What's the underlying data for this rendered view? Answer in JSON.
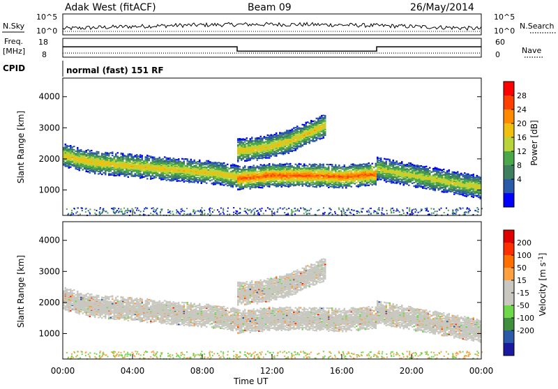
{
  "header": {
    "station": "Adak West (fitACF)",
    "beam": "Beam 09",
    "date": "26/May/2014"
  },
  "top_panels": {
    "nsky_label": "N.Sky",
    "nsky_ticks": [
      "10^5",
      "10^0"
    ],
    "nsearch_label": "N.Search",
    "nsearch_ticks": [
      "10^5",
      "10^0"
    ],
    "freq_label": "Freq.",
    "freq_unit": "[MHz]",
    "freq_ticks": [
      "18",
      "8"
    ],
    "nave_label": "Nave",
    "nave_ticks": [
      "60",
      "0"
    ],
    "cpid_label": "CPID",
    "cpid_text": "normal (fast) 151 RF"
  },
  "colors": {
    "power_scale": [
      "#0000ff",
      "#2a5aa8",
      "#3f7f5f",
      "#4aa84a",
      "#b8d43a",
      "#f0c010",
      "#ff8a00",
      "#ff4000",
      "#ff0000"
    ],
    "velocity_scale": [
      "#1a1aa0",
      "#2a5aa8",
      "#3f8f3f",
      "#6fd84a",
      "#c8c8c0",
      "#c8c8c0",
      "#ffa040",
      "#ff7000",
      "#ff3000",
      "#e00000"
    ]
  },
  "chart_data": [
    {
      "type": "line",
      "title": "N.Sky / N.Search",
      "ylabel": "N.Sky",
      "y2label": "N.Search",
      "ylim": [
        1,
        100000
      ],
      "log_scale": true,
      "series": []
    },
    {
      "type": "line",
      "ylabel": "Freq. [MHz]",
      "y2label": "Nave",
      "ylim": [
        8,
        18
      ],
      "y2lim": [
        0,
        60
      ],
      "x": [
        0,
        10,
        10,
        18,
        18,
        24
      ],
      "series": [
        {
          "name": "Freq.",
          "values": [
            13.5,
            13.5,
            11.2,
            11.2,
            13.5,
            13.5
          ]
        },
        {
          "name": "Nave",
          "values": [
            13,
            13,
            13,
            13,
            13,
            13
          ]
        }
      ]
    },
    {
      "type": "heatmap",
      "ylabel": "Slant Range [km]",
      "colorbar_label": "Power [dB]",
      "colorbar_ticks": [
        4,
        8,
        12,
        16,
        20,
        24,
        28
      ],
      "ylim": [
        180,
        4600
      ],
      "yticks": [
        1000,
        2000,
        3000,
        4000
      ],
      "xlim": [
        0,
        24
      ],
      "xticks": [
        "00:00",
        "04:00",
        "08:00",
        "12:00",
        "16:00",
        "20:00",
        "00:00"
      ],
      "bands": [
        {
          "x": [
            0,
            1,
            2,
            3,
            4,
            5,
            6,
            7,
            8,
            9,
            10
          ],
          "y": [
            2150,
            2000,
            1900,
            1850,
            1800,
            1750,
            1700,
            1650,
            1600,
            1550,
            1450
          ],
          "power": 20
        },
        {
          "x": [
            10,
            11,
            12,
            13,
            14,
            15,
            16,
            17,
            18
          ],
          "y": [
            1400,
            1450,
            1500,
            1500,
            1500,
            1480,
            1450,
            1500,
            1550
          ],
          "power": 26
        },
        {
          "x": [
            10,
            11,
            12,
            13,
            14,
            15
          ],
          "y": [
            2300,
            2350,
            2450,
            2600,
            2850,
            3100
          ],
          "power": 20
        },
        {
          "x": [
            18,
            19,
            20,
            21,
            22,
            23,
            24
          ],
          "y": [
            1700,
            1600,
            1500,
            1400,
            1300,
            1200,
            1100
          ],
          "power": 18
        }
      ]
    },
    {
      "type": "heatmap",
      "ylabel": "Slant Range [km]",
      "colorbar_label": "Velocity [m s^-1]",
      "colorbar_ticks": [
        200,
        100,
        50,
        15,
        -15,
        -50,
        -100,
        -200
      ],
      "ylim": [
        180,
        4600
      ],
      "yticks": [
        1000,
        2000,
        3000,
        4000
      ],
      "xlim": [
        0,
        24
      ],
      "xticks": [
        "00:00",
        "04:00",
        "08:00",
        "12:00",
        "16:00",
        "20:00",
        "00:00"
      ],
      "xlabel": "Time UT"
    }
  ]
}
